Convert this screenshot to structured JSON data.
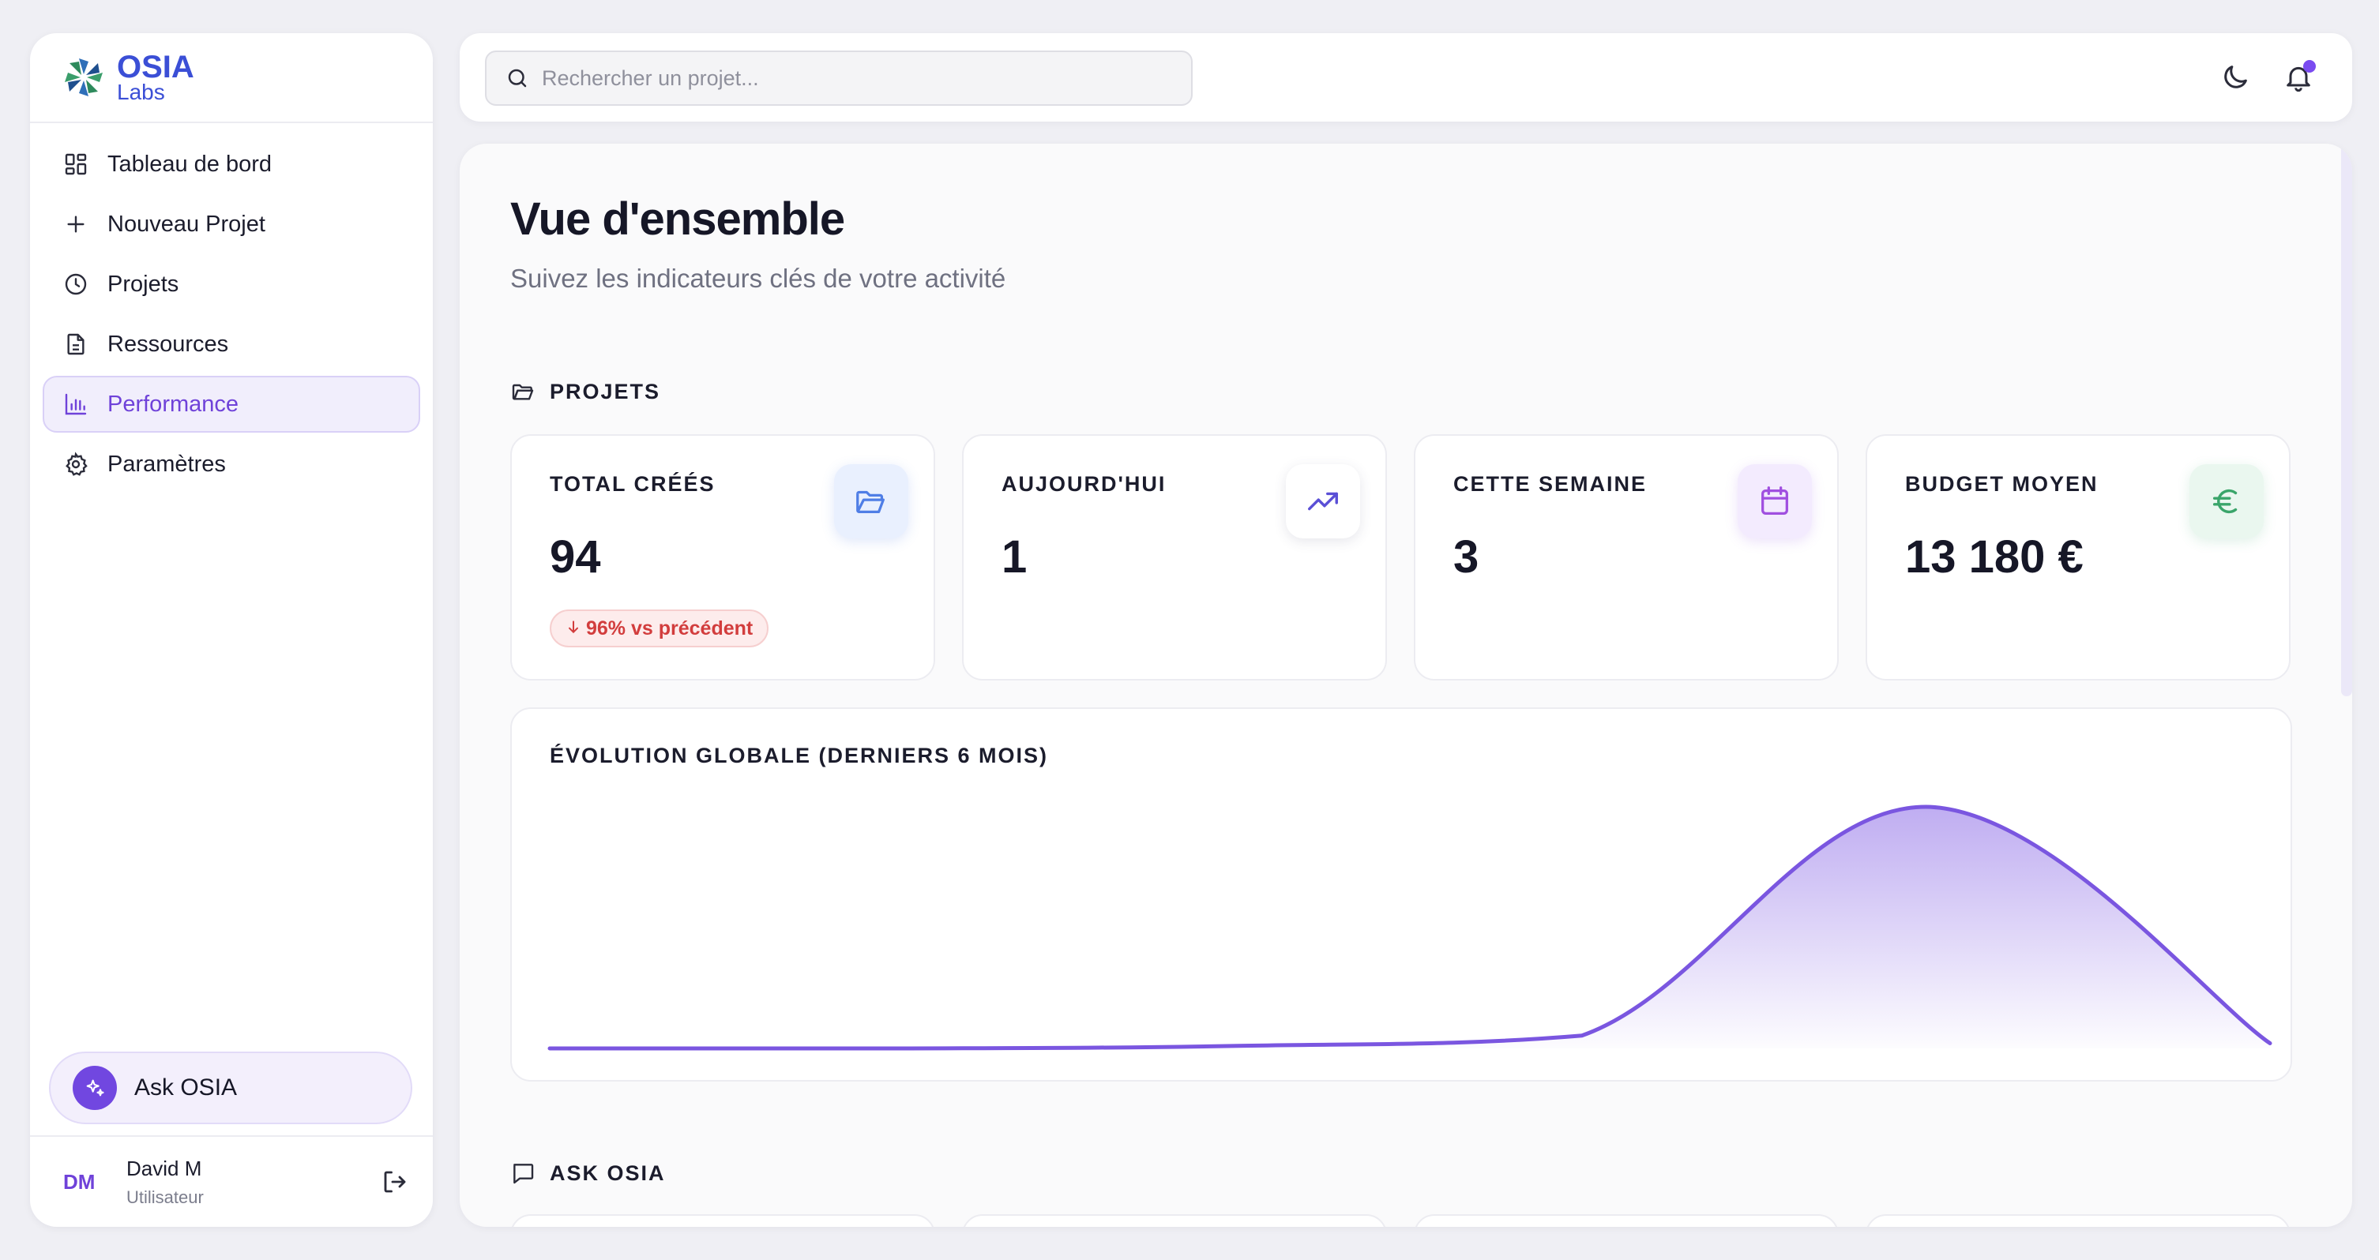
{
  "app": {
    "logo_name": "OSIA",
    "logo_sub": "Labs"
  },
  "sidebar": {
    "items": [
      {
        "label": "Tableau de bord",
        "icon": "dashboard-grid-icon"
      },
      {
        "label": "Nouveau Projet",
        "icon": "plus-icon"
      },
      {
        "label": "Projets",
        "icon": "clock-icon"
      },
      {
        "label": "Ressources",
        "icon": "document-icon"
      },
      {
        "label": "Performance",
        "icon": "bar-chart-icon",
        "active": true
      },
      {
        "label": "Paramètres",
        "icon": "gear-icon"
      }
    ],
    "ask_label": "Ask OSIA",
    "user": {
      "initials": "DM",
      "name": "David M",
      "role": "Utilisateur"
    }
  },
  "topbar": {
    "search_placeholder": "Rechercher un projet...",
    "has_notification": true
  },
  "main": {
    "title": "Vue d'ensemble",
    "subtitle": "Suivez les indicateurs clés de votre activité",
    "projects_section": "PROJETS",
    "kpis": [
      {
        "label": "TOTAL CRÉÉS",
        "value": "94",
        "icon": "folder-open-icon",
        "badge": "96% vs précédent",
        "badge_direction": "down"
      },
      {
        "label": "AUJOURD'HUI",
        "value": "1",
        "icon": "trending-up-icon"
      },
      {
        "label": "CETTE SEMAINE",
        "value": "3",
        "icon": "calendar-icon"
      },
      {
        "label": "BUDGET MOYEN",
        "value": "13 180 €",
        "icon": "euro-icon"
      }
    ],
    "chart_title": "ÉVOLUTION GLOBALE (DERNIERS 6 MOIS)",
    "ask_section": "ASK OSIA"
  },
  "colors": {
    "accent": "#7147e0",
    "active_bg": "#f1eefc",
    "negative": "#d23d3d"
  },
  "chart_data": {
    "type": "area",
    "x": [
      0,
      1,
      2,
      3,
      4,
      5
    ],
    "values": [
      0,
      0,
      1,
      5,
      94,
      2
    ],
    "title": "ÉVOLUTION GLOBALE (DERNIERS 6 MOIS)",
    "xlabel": "",
    "ylabel": "",
    "grid": false,
    "color": "#7a56e0"
  }
}
